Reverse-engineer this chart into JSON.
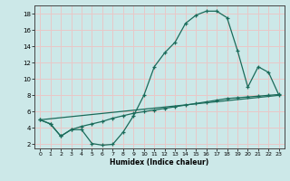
{
  "title": "",
  "xlabel": "Humidex (Indice chaleur)",
  "ylabel": "",
  "bg_color": "#cce8e8",
  "grid_color": "#e8c8c8",
  "line_color": "#1a6b5a",
  "xlim": [
    -0.5,
    23.5
  ],
  "ylim": [
    1.5,
    19.0
  ],
  "xticks": [
    0,
    1,
    2,
    3,
    4,
    5,
    6,
    7,
    8,
    9,
    10,
    11,
    12,
    13,
    14,
    15,
    16,
    17,
    18,
    19,
    20,
    21,
    22,
    23
  ],
  "yticks": [
    2,
    4,
    6,
    8,
    10,
    12,
    14,
    16,
    18
  ],
  "line1_x": [
    0,
    1,
    2,
    3,
    4,
    5,
    6,
    7,
    8,
    9,
    10,
    11,
    12,
    13,
    14,
    15,
    16,
    17,
    18,
    19,
    20,
    21,
    22,
    23
  ],
  "line1_y": [
    5.0,
    4.5,
    3.0,
    3.8,
    3.8,
    2.1,
    1.9,
    2.0,
    3.5,
    5.5,
    8.0,
    11.5,
    13.2,
    14.5,
    16.8,
    17.8,
    18.3,
    18.3,
    17.5,
    13.5,
    9.0,
    11.5,
    10.8,
    8.0
  ],
  "line2_x": [
    0,
    1,
    2,
    3,
    4,
    5,
    6,
    7,
    8,
    9,
    10,
    11,
    12,
    13,
    14,
    15,
    16,
    17,
    18,
    19,
    20,
    21,
    22,
    23
  ],
  "line2_y": [
    5.0,
    4.5,
    3.0,
    3.8,
    4.2,
    4.5,
    4.8,
    5.2,
    5.5,
    5.8,
    6.0,
    6.2,
    6.4,
    6.6,
    6.8,
    7.0,
    7.2,
    7.4,
    7.6,
    7.7,
    7.8,
    7.9,
    8.0,
    8.1
  ],
  "line3_x": [
    0,
    23
  ],
  "line3_y": [
    5.0,
    8.0
  ],
  "figsize": [
    3.2,
    2.0
  ],
  "dpi": 100
}
